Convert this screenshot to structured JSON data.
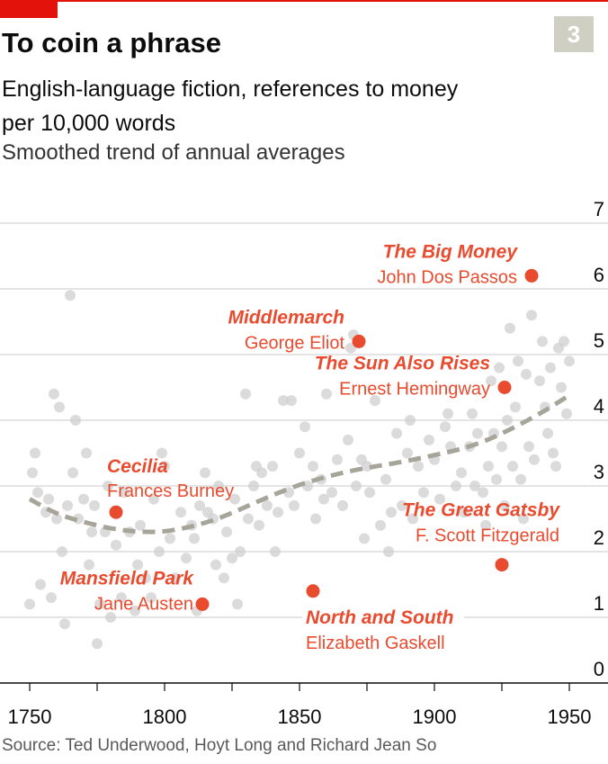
{
  "badge": "3",
  "title": "To coin a phrase",
  "subtitle": "English-language fiction, references to money per 10,000 words",
  "subsubtitle": "Smoothed trend of annual averages",
  "source": "Source: Ted Underwood, Hoyt Long and Richard Jean So",
  "colors": {
    "accent": "#e3120b",
    "highlight": "#e94b2f",
    "scatter": "#cfcfcf",
    "trend": "#a7a59a",
    "grid": "#c9c9c9"
  },
  "chart_data": {
    "type": "scatter",
    "xlim": [
      1740,
      1960
    ],
    "ylim": [
      0,
      7
    ],
    "x_ticks": [
      1750,
      1800,
      1850,
      1900,
      1950
    ],
    "y_ticks": [
      0,
      1,
      2,
      3,
      4,
      5,
      6,
      7
    ],
    "grid": "horizontal",
    "series": [
      {
        "role": "background",
        "points": [
          [
            1750,
            1.2
          ],
          [
            1751,
            3.2
          ],
          [
            1752,
            3.5
          ],
          [
            1753,
            2.9
          ],
          [
            1754,
            1.5
          ],
          [
            1756,
            2.6
          ],
          [
            1757,
            2.8
          ],
          [
            1758,
            1.3
          ],
          [
            1759,
            4.4
          ],
          [
            1760,
            2.5
          ],
          [
            1761,
            4.2
          ],
          [
            1762,
            2.0
          ],
          [
            1763,
            0.9
          ],
          [
            1764,
            2.7
          ],
          [
            1765,
            5.9
          ],
          [
            1766,
            3.2
          ],
          [
            1767,
            4.0
          ],
          [
            1768,
            2.5
          ],
          [
            1770,
            2.8
          ],
          [
            1771,
            3.5
          ],
          [
            1772,
            1.8
          ],
          [
            1773,
            2.3
          ],
          [
            1774,
            2.7
          ],
          [
            1775,
            0.6
          ],
          [
            1776,
            1.2
          ],
          [
            1778,
            2.3
          ],
          [
            1779,
            3.0
          ],
          [
            1780,
            1.0
          ],
          [
            1782,
            2.1
          ],
          [
            1784,
            1.3
          ],
          [
            1785,
            2.9
          ],
          [
            1787,
            2.3
          ],
          [
            1789,
            1.1
          ],
          [
            1790,
            1.8
          ],
          [
            1791,
            2.4
          ],
          [
            1793,
            1.6
          ],
          [
            1795,
            1.3
          ],
          [
            1796,
            2.8
          ],
          [
            1798,
            2.0
          ],
          [
            1799,
            3.5
          ],
          [
            1800,
            3.3
          ],
          [
            1802,
            2.2
          ],
          [
            1804,
            1.6
          ],
          [
            1806,
            2.6
          ],
          [
            1808,
            1.9
          ],
          [
            1810,
            2.4
          ],
          [
            1811,
            2.2
          ],
          [
            1812,
            1.1
          ],
          [
            1813,
            2.7
          ],
          [
            1815,
            3.2
          ],
          [
            1816,
            2.6
          ],
          [
            1818,
            2.5
          ],
          [
            1819,
            1.8
          ],
          [
            1820,
            3.0
          ],
          [
            1822,
            1.6
          ],
          [
            1823,
            2.3
          ],
          [
            1825,
            1.9
          ],
          [
            1826,
            2.8
          ],
          [
            1827,
            1.2
          ],
          [
            1828,
            2.0
          ],
          [
            1830,
            4.4
          ],
          [
            1831,
            2.5
          ],
          [
            1833,
            3.0
          ],
          [
            1834,
            3.3
          ],
          [
            1835,
            2.4
          ],
          [
            1836,
            3.2
          ],
          [
            1838,
            2.7
          ],
          [
            1840,
            3.3
          ],
          [
            1841,
            2.0
          ],
          [
            1842,
            2.6
          ],
          [
            1844,
            4.3
          ],
          [
            1846,
            2.9
          ],
          [
            1847,
            4.3
          ],
          [
            1848,
            2.7
          ],
          [
            1850,
            3.5
          ],
          [
            1852,
            3.9
          ],
          [
            1853,
            3.0
          ],
          [
            1855,
            3.3
          ],
          [
            1856,
            2.5
          ],
          [
            1858,
            3.1
          ],
          [
            1859,
            2.8
          ],
          [
            1860,
            4.4
          ],
          [
            1862,
            2.9
          ],
          [
            1864,
            3.4
          ],
          [
            1866,
            2.7
          ],
          [
            1868,
            3.7
          ],
          [
            1869,
            5.1
          ],
          [
            1870,
            5.3
          ],
          [
            1871,
            3.0
          ],
          [
            1873,
            3.4
          ],
          [
            1874,
            2.2
          ],
          [
            1875,
            3.3
          ],
          [
            1876,
            2.9
          ],
          [
            1878,
            4.3
          ],
          [
            1880,
            2.4
          ],
          [
            1882,
            3.1
          ],
          [
            1883,
            2.0
          ],
          [
            1884,
            2.6
          ],
          [
            1886,
            3.8
          ],
          [
            1888,
            2.7
          ],
          [
            1890,
            3.5
          ],
          [
            1891,
            4.0
          ],
          [
            1892,
            2.5
          ],
          [
            1894,
            3.3
          ],
          [
            1896,
            2.9
          ],
          [
            1898,
            3.7
          ],
          [
            1900,
            3.4
          ],
          [
            1902,
            2.8
          ],
          [
            1904,
            3.9
          ],
          [
            1905,
            4.1
          ],
          [
            1906,
            3.6
          ],
          [
            1908,
            3.0
          ],
          [
            1910,
            3.2
          ],
          [
            1911,
            2.6
          ],
          [
            1913,
            3.6
          ],
          [
            1914,
            4.1
          ],
          [
            1915,
            3.0
          ],
          [
            1916,
            3.8
          ],
          [
            1918,
            2.9
          ],
          [
            1919,
            2.4
          ],
          [
            1920,
            3.3
          ],
          [
            1921,
            4.6
          ],
          [
            1922,
            3.8
          ],
          [
            1923,
            3.1
          ],
          [
            1924,
            4.8
          ],
          [
            1925,
            3.6
          ],
          [
            1926,
            2.7
          ],
          [
            1927,
            4.0
          ],
          [
            1928,
            5.4
          ],
          [
            1929,
            3.3
          ],
          [
            1930,
            4.2
          ],
          [
            1931,
            4.9
          ],
          [
            1932,
            3.1
          ],
          [
            1933,
            2.5
          ],
          [
            1934,
            4.7
          ],
          [
            1935,
            3.6
          ],
          [
            1936,
            5.6
          ],
          [
            1937,
            3.4
          ],
          [
            1939,
            4.6
          ],
          [
            1940,
            5.2
          ],
          [
            1941,
            4.2
          ],
          [
            1942,
            3.8
          ],
          [
            1943,
            4.8
          ],
          [
            1944,
            3.5
          ],
          [
            1945,
            3.3
          ],
          [
            1946,
            5.1
          ],
          [
            1947,
            4.5
          ],
          [
            1948,
            5.2
          ],
          [
            1949,
            4.1
          ],
          [
            1950,
            4.9
          ]
        ]
      },
      {
        "role": "trend",
        "points": [
          [
            1750,
            2.8
          ],
          [
            1760,
            2.57
          ],
          [
            1770,
            2.45
          ],
          [
            1780,
            2.35
          ],
          [
            1790,
            2.3
          ],
          [
            1800,
            2.3
          ],
          [
            1810,
            2.38
          ],
          [
            1820,
            2.5
          ],
          [
            1830,
            2.68
          ],
          [
            1840,
            2.86
          ],
          [
            1850,
            3.02
          ],
          [
            1860,
            3.14
          ],
          [
            1870,
            3.24
          ],
          [
            1880,
            3.31
          ],
          [
            1890,
            3.38
          ],
          [
            1900,
            3.47
          ],
          [
            1910,
            3.56
          ],
          [
            1920,
            3.7
          ],
          [
            1930,
            3.9
          ],
          [
            1940,
            4.12
          ],
          [
            1950,
            4.38
          ]
        ]
      }
    ],
    "highlights": [
      {
        "title": "The Big Money",
        "author": "John Dos Passos",
        "x": 1936,
        "y": 6.2,
        "label_anchor": "end"
      },
      {
        "title": "Middlemarch",
        "author": "George Eliot",
        "x": 1872,
        "y": 5.2,
        "label_anchor": "end"
      },
      {
        "title": "The Sun Also Rises",
        "author": "Ernest Hemingway",
        "x": 1926,
        "y": 4.5,
        "label_anchor": "end"
      },
      {
        "title": "Cecilia",
        "author": "Frances Burney",
        "x": 1782,
        "y": 2.6,
        "label_anchor": "start"
      },
      {
        "title": "The Great Gatsby",
        "author": "F. Scott Fitzgerald",
        "x": 1925,
        "y": 1.8,
        "label_anchor": "end"
      },
      {
        "title": "Mansfield Park",
        "author": "Jane Austen",
        "x": 1814,
        "y": 1.2,
        "label_anchor": "end"
      },
      {
        "title": "North and South",
        "author": "Elizabeth Gaskell",
        "x": 1855,
        "y": 1.4,
        "label_anchor": "start"
      }
    ]
  }
}
